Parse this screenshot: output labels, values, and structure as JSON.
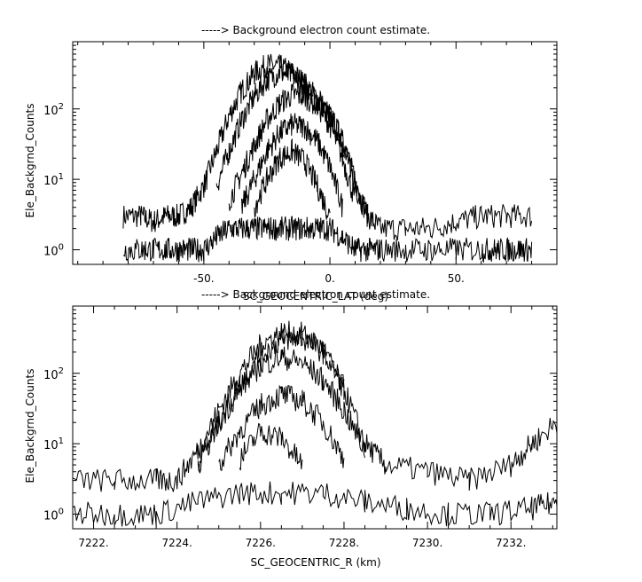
{
  "chart_data": [
    {
      "type": "line",
      "title": "-----> Background electron count estimate.",
      "xlabel": "SC_GEOCENTRIC_LAT (deg)",
      "ylabel": "Ele_Backgrnd_Counts",
      "yscale": "log",
      "xlim": [
        -102,
        90
      ],
      "ylim": [
        0.62,
        900
      ],
      "x_tick_labels": [
        "-50.",
        "0.",
        "50."
      ],
      "x_tick_values": [
        -50,
        0,
        50
      ],
      "y_tick_labels": [
        "10",
        "10",
        "10"
      ],
      "y_tick_exponents": [
        "0",
        "1",
        "2"
      ],
      "y_tick_values": [
        1,
        10,
        100
      ],
      "grid": false,
      "series": [
        {
          "x": [
            -82,
            -75,
            -70,
            -65,
            -60,
            -55,
            -50,
            -45,
            -40,
            -35,
            -30,
            -25,
            -20,
            -15,
            -10,
            -5,
            0,
            5,
            10,
            15,
            20,
            30,
            40,
            50,
            60,
            70,
            80
          ],
          "y": [
            3,
            3,
            2.5,
            3,
            3,
            4,
            8,
            25,
            80,
            180,
            320,
            420,
            400,
            330,
            230,
            140,
            80,
            35,
            8,
            3,
            2,
            2,
            2,
            2.5,
            3,
            3,
            3
          ]
        },
        {
          "x": [
            -45,
            -40,
            -35,
            -30,
            -25,
            -20,
            -15,
            -10,
            -5,
            0,
            5,
            10,
            15
          ],
          "y": [
            8,
            25,
            70,
            150,
            260,
            330,
            300,
            220,
            140,
            80,
            35,
            10,
            3
          ]
        },
        {
          "x": [
            -40,
            -35,
            -30,
            -25,
            -20,
            -15,
            -10,
            -5,
            0,
            5,
            10
          ],
          "y": [
            5,
            12,
            30,
            70,
            120,
            160,
            150,
            110,
            60,
            20,
            5
          ]
        },
        {
          "x": [
            -35,
            -30,
            -25,
            -20,
            -15,
            -10,
            -5,
            0,
            5
          ],
          "y": [
            4,
            10,
            25,
            45,
            60,
            55,
            35,
            15,
            4
          ]
        },
        {
          "x": [
            -30,
            -25,
            -20,
            -15,
            -10,
            -5,
            0
          ],
          "y": [
            4,
            10,
            20,
            25,
            18,
            8,
            3
          ]
        },
        {
          "x": [
            -82,
            -75,
            -70,
            -65,
            -60,
            -55,
            -50,
            -45,
            -40,
            -35,
            -30,
            -25,
            -20,
            -15,
            -10,
            -5,
            0,
            5,
            10,
            15,
            20,
            30,
            40,
            50,
            60,
            65,
            70,
            75,
            80
          ],
          "y": [
            1,
            1,
            1,
            1,
            1,
            1,
            1,
            1.5,
            2,
            2,
            2,
            2,
            2,
            2,
            2,
            2,
            2,
            1.5,
            1,
            1,
            1,
            1,
            1,
            1,
            1,
            1,
            1,
            1,
            1
          ]
        }
      ]
    },
    {
      "type": "line",
      "title": "-----> Background electron count estimate.",
      "xlabel": "SC_GEOCENTRIC_R (km)",
      "ylabel": "Ele_Backgrnd_Counts",
      "yscale": "log",
      "xlim": [
        7221.5,
        7233.1
      ],
      "ylim": [
        0.62,
        900
      ],
      "x_tick_labels": [
        "7222.",
        "7224.",
        "7226.",
        "7228.",
        "7230.",
        "7232."
      ],
      "x_tick_values": [
        7222,
        7224,
        7226,
        7228,
        7230,
        7232
      ],
      "y_tick_labels": [
        "10",
        "10",
        "10"
      ],
      "y_tick_exponents": [
        "0",
        "1",
        "2"
      ],
      "y_tick_values": [
        1,
        10,
        100
      ],
      "grid": false,
      "series": [
        {
          "x": [
            7221.5,
            7222.5,
            7223.5,
            7224,
            7224.5,
            7225,
            7225.5,
            7226,
            7226.5,
            7227,
            7227.5,
            7228,
            7228.5,
            7229,
            7230,
            7231,
            7232,
            7232.5,
            7233.1
          ],
          "y": [
            3,
            3,
            3,
            3,
            8,
            30,
            100,
            250,
            380,
            360,
            220,
            60,
            10,
            5,
            4,
            3,
            5,
            10,
            20
          ]
        },
        {
          "x": [
            7224.5,
            7225,
            7225.5,
            7226,
            7226.5,
            7227,
            7227.5,
            7228
          ],
          "y": [
            5,
            20,
            70,
            180,
            300,
            320,
            200,
            60
          ]
        },
        {
          "x": [
            7224.5,
            7225,
            7225.5,
            7226,
            7226.5,
            7227,
            7227.5,
            7228,
            7228.5
          ],
          "y": [
            5,
            20,
            60,
            130,
            170,
            140,
            80,
            30,
            8
          ]
        },
        {
          "x": [
            7225,
            7225.5,
            7226,
            7226.5,
            7227,
            7227.5,
            7228
          ],
          "y": [
            5,
            15,
            35,
            50,
            40,
            20,
            6
          ]
        },
        {
          "x": [
            7225.5,
            7226,
            7226.5,
            7227
          ],
          "y": [
            6,
            15,
            12,
            5
          ]
        },
        {
          "x": [
            7221.5,
            7222.5,
            7223.5,
            7224.5,
            7225.5,
            7226.5,
            7227.5,
            7228.5,
            7229.5,
            7230.5,
            7231.5,
            7232.5,
            7233.1
          ],
          "y": [
            1,
            1,
            1,
            1.5,
            2,
            2,
            2,
            1.5,
            1.2,
            1,
            1,
            1.2,
            1.5
          ]
        }
      ]
    }
  ]
}
